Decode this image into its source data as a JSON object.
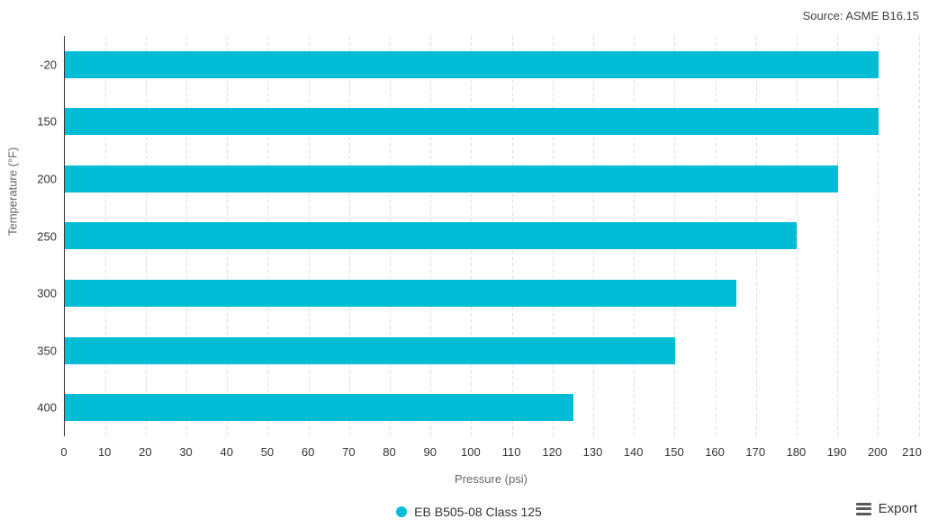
{
  "header": {
    "source": "Source: ASME B16.15"
  },
  "chart_data": {
    "type": "bar",
    "orientation": "horizontal",
    "title": "",
    "categories": [
      "-20",
      "150",
      "200",
      "250",
      "300",
      "350",
      "400"
    ],
    "series": [
      {
        "name": "EB B505-08 Class 125",
        "color": "#00bcd4",
        "values": [
          200,
          200,
          190,
          180,
          165,
          150,
          125
        ]
      }
    ],
    "xlabel": "Pressure (psi)",
    "ylabel": "Temperature (°F)",
    "xlim": [
      0,
      210
    ],
    "x_tick_step": 10,
    "grid": "vertical-dashed",
    "legend_position": "bottom-center"
  },
  "legend": {
    "items": [
      {
        "label": "EB B505-08 Class 125",
        "color": "#00bcd4"
      }
    ]
  },
  "export": {
    "label": "Export"
  },
  "colors": {
    "bar": "#00bcd4",
    "axis_line": "#2f2f2f",
    "gridline": "#dedede",
    "tick_label": "#333333",
    "axis_title": "#666666",
    "source_text": "#404040"
  }
}
